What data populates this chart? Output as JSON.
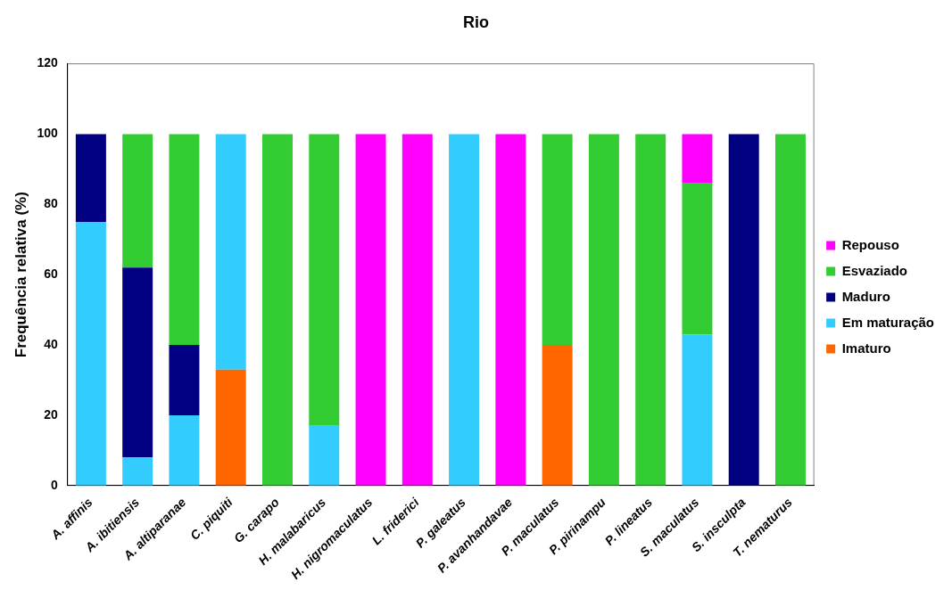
{
  "chart_data": {
    "type": "bar",
    "title": "Rio",
    "ylabel": "Frequência relativa (%)",
    "categories": [
      "A. affinis",
      "A. ibitiensis",
      "A. altiparanae",
      "C. piquiti",
      "G. carapo",
      "H. malabaricus",
      "H. nigromaculatus",
      "L. friderici",
      "P. galeatus",
      "P. avanhandavae",
      "P. maculatus",
      "P. pirinampu",
      "P. lineatus",
      "S. maculatus",
      "S. insculpta",
      "T. nematurus"
    ],
    "series": [
      {
        "name": "Imaturo",
        "color": "#ff6600",
        "values": [
          0,
          0,
          0,
          33,
          0,
          0,
          0,
          0,
          0,
          0,
          40,
          0,
          0,
          0,
          0,
          0
        ]
      },
      {
        "name": "Em maturação",
        "color": "#33ccff",
        "values": [
          75,
          8,
          20,
          67,
          0,
          17,
          0,
          0,
          100,
          0,
          0,
          0,
          0,
          43,
          0,
          0
        ]
      },
      {
        "name": "Maduro",
        "color": "#000080",
        "values": [
          25,
          54,
          20,
          0,
          0,
          0,
          0,
          0,
          0,
          0,
          0,
          0,
          0,
          0,
          100,
          0
        ]
      },
      {
        "name": "Esvaziado",
        "color": "#33cc33",
        "values": [
          0,
          38,
          60,
          0,
          100,
          83,
          0,
          0,
          0,
          0,
          60,
          100,
          100,
          43,
          0,
          100
        ]
      },
      {
        "name": "Repouso",
        "color": "#ff00ff",
        "values": [
          0,
          0,
          0,
          0,
          0,
          0,
          100,
          100,
          0,
          100,
          0,
          0,
          0,
          14,
          0,
          0
        ]
      }
    ],
    "stacked": true,
    "ylim": [
      0,
      120
    ],
    "yticks": [
      0,
      20,
      40,
      60,
      80,
      100,
      120
    ],
    "grid": false,
    "legend": "right"
  }
}
